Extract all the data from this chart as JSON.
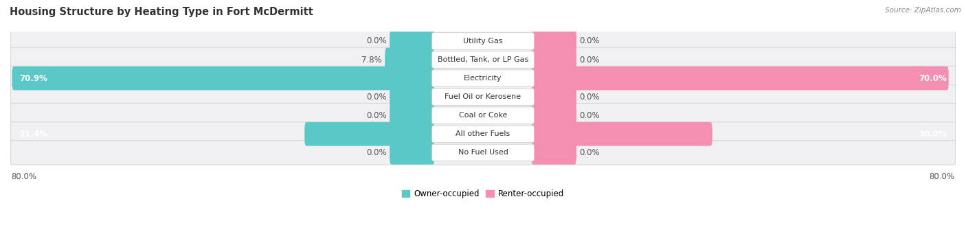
{
  "title": "Housing Structure by Heating Type in Fort McDermitt",
  "source": "Source: ZipAtlas.com",
  "categories": [
    "Utility Gas",
    "Bottled, Tank, or LP Gas",
    "Electricity",
    "Fuel Oil or Kerosene",
    "Coal or Coke",
    "All other Fuels",
    "No Fuel Used"
  ],
  "owner_values": [
    0.0,
    7.8,
    70.9,
    0.0,
    0.0,
    21.4,
    0.0
  ],
  "renter_values": [
    0.0,
    0.0,
    70.0,
    0.0,
    0.0,
    30.0,
    0.0
  ],
  "owner_color": "#5BC8C8",
  "renter_color": "#F48FB1",
  "row_bg_color": "#F0F0F2",
  "row_border_color": "#D8D8DC",
  "max_val": 80.0,
  "stub_val": 7.0,
  "label_fontsize": 8.5,
  "title_fontsize": 10.5,
  "source_fontsize": 7.5,
  "cat_label_fontsize": 8.0,
  "title_color": "#333333",
  "value_color": "#555555",
  "source_color": "#888888"
}
